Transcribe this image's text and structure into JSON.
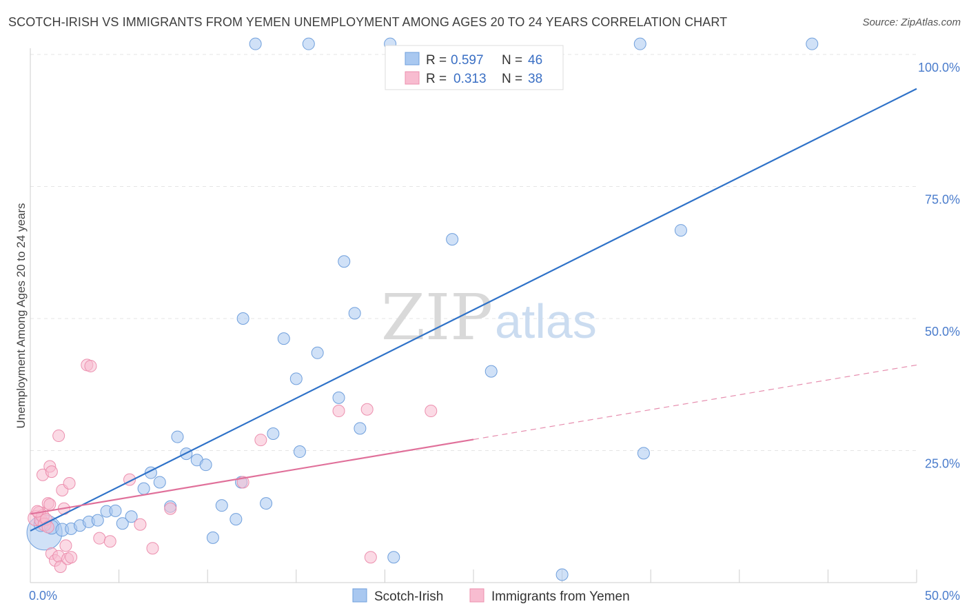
{
  "header": {
    "title": "SCOTCH-IRISH VS IMMIGRANTS FROM YEMEN UNEMPLOYMENT AMONG AGES 20 TO 24 YEARS CORRELATION CHART",
    "source": "Source: ZipAtlas.com"
  },
  "watermark": {
    "zip": "ZIP",
    "atlas": "atlas"
  },
  "chart_data": {
    "type": "scatter",
    "title": "SCOTCH-IRISH VS IMMIGRANTS FROM YEMEN UNEMPLOYMENT AMONG AGES 20 TO 24 YEARS CORRELATION CHART",
    "xlabel": "",
    "ylabel": "Unemployment Among Ages 20 to 24 years",
    "xlim": [
      0,
      50
    ],
    "ylim": [
      0,
      100
    ],
    "x_tick_labels": {
      "left": "0.0%",
      "right": "50.0%"
    },
    "y_tick_labels": [
      {
        "value": 25,
        "label": "25.0%"
      },
      {
        "value": 50,
        "label": "50.0%"
      },
      {
        "value": 75,
        "label": "75.0%"
      },
      {
        "value": 100,
        "label": "100.0%"
      }
    ],
    "legend_position": "top-center",
    "series": [
      {
        "name": "Scotch-Irish",
        "color": "#a9c8f0",
        "stroke": "#6f9fdc",
        "line_color": "#2f72c8",
        "R": "0.597",
        "N": "46",
        "trend": {
          "x0": 0,
          "y0": 9.8,
          "x1": 50,
          "y1": 93.5,
          "solid_until": 50
        },
        "points": [
          [
            0.8,
            9.5,
            30
          ],
          [
            0.6,
            11.0,
            12
          ],
          [
            1.2,
            10.5,
            12
          ],
          [
            1.8,
            10.0,
            11
          ],
          [
            2.3,
            10.2,
            10
          ],
          [
            2.8,
            10.8,
            10
          ],
          [
            3.3,
            11.5,
            10
          ],
          [
            3.8,
            11.8,
            10
          ],
          [
            4.3,
            13.5,
            10
          ],
          [
            4.8,
            13.6,
            10
          ],
          [
            5.2,
            11.2,
            10
          ],
          [
            5.7,
            12.5,
            10
          ],
          [
            6.4,
            17.8,
            10
          ],
          [
            6.8,
            20.8,
            10
          ],
          [
            7.3,
            19.0,
            10
          ],
          [
            7.9,
            14.4,
            10
          ],
          [
            8.3,
            27.6,
            10
          ],
          [
            8.8,
            24.4,
            10
          ],
          [
            9.4,
            23.2,
            10
          ],
          [
            9.9,
            22.3,
            10
          ],
          [
            10.3,
            8.5,
            10
          ],
          [
            10.8,
            14.6,
            10
          ],
          [
            11.6,
            12.0,
            10
          ],
          [
            11.9,
            19.0,
            10
          ],
          [
            12.0,
            50.0,
            10
          ],
          [
            13.3,
            15.0,
            10
          ],
          [
            13.7,
            28.2,
            10
          ],
          [
            14.3,
            46.2,
            10
          ],
          [
            15.0,
            38.6,
            10
          ],
          [
            15.2,
            24.8,
            10
          ],
          [
            16.2,
            43.5,
            10
          ],
          [
            17.4,
            35.0,
            10
          ],
          [
            17.7,
            60.8,
            10
          ],
          [
            18.3,
            51.0,
            10
          ],
          [
            18.6,
            29.2,
            10
          ],
          [
            20.5,
            4.8,
            10
          ],
          [
            23.8,
            65.0,
            10
          ],
          [
            26.0,
            40.0,
            10
          ],
          [
            30.0,
            1.5,
            10
          ],
          [
            34.6,
            24.5,
            10
          ],
          [
            36.7,
            66.7,
            10
          ],
          [
            12.7,
            102.0,
            10
          ],
          [
            15.7,
            102.0,
            10
          ],
          [
            20.3,
            102.0,
            10
          ],
          [
            34.4,
            102.0,
            10
          ],
          [
            44.1,
            102.0,
            10
          ]
        ]
      },
      {
        "name": "Immigrants from Yemen",
        "color": "#f8bcd0",
        "stroke": "#ec8fae",
        "line_color": "#e0709a",
        "R": "0.313",
        "N": "38",
        "trend": {
          "x0": 0,
          "y0": 13.0,
          "x1": 50,
          "y1": 41.2,
          "solid_until": 25
        },
        "points": [
          [
            0.3,
            12.2,
            13
          ],
          [
            0.5,
            13.2,
            11
          ],
          [
            0.6,
            11.8,
            11
          ],
          [
            0.7,
            12.6,
            11
          ],
          [
            0.8,
            11.0,
            11
          ],
          [
            0.9,
            12.0,
            10
          ],
          [
            1.0,
            10.5,
            10
          ],
          [
            0.7,
            20.4,
            10
          ],
          [
            1.1,
            22.0,
            10
          ],
          [
            1.2,
            21.0,
            10
          ],
          [
            1.0,
            15.0,
            10
          ],
          [
            1.1,
            14.8,
            10
          ],
          [
            1.2,
            5.5,
            10
          ],
          [
            1.4,
            4.2,
            10
          ],
          [
            1.6,
            5.0,
            10
          ],
          [
            1.7,
            3.0,
            10
          ],
          [
            1.6,
            27.8,
            10
          ],
          [
            1.8,
            17.5,
            10
          ],
          [
            1.9,
            14.0,
            10
          ],
          [
            2.0,
            7.0,
            10
          ],
          [
            2.1,
            4.5,
            10
          ],
          [
            2.2,
            18.8,
            10
          ],
          [
            2.3,
            4.8,
            10
          ],
          [
            3.2,
            41.2,
            10
          ],
          [
            3.4,
            41.0,
            10
          ],
          [
            3.9,
            8.4,
            10
          ],
          [
            4.5,
            7.8,
            10
          ],
          [
            5.6,
            19.5,
            10
          ],
          [
            6.2,
            11.0,
            10
          ],
          [
            6.9,
            6.5,
            10
          ],
          [
            7.9,
            14.0,
            10
          ],
          [
            12.0,
            19.0,
            10
          ],
          [
            13.0,
            27.0,
            10
          ],
          [
            17.4,
            32.5,
            10
          ],
          [
            19.0,
            32.8,
            10
          ],
          [
            19.2,
            4.8,
            10
          ],
          [
            22.6,
            32.5,
            10
          ],
          [
            0.4,
            13.5,
            10
          ]
        ]
      }
    ]
  },
  "legend": {
    "r_label": "R =",
    "n_label": "N =",
    "items": [
      {
        "r": "0.597",
        "n": "46"
      },
      {
        "r": "0.313",
        "n": "38"
      }
    ]
  },
  "bottom_legend": {
    "items": [
      {
        "label": "Scotch-Irish"
      },
      {
        "label": "Immigrants from Yemen"
      }
    ]
  }
}
